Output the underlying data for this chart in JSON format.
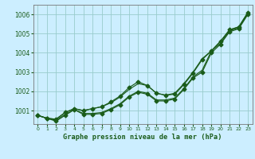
{
  "title": "Graphe pression niveau de la mer (hPa)",
  "background_color": "#cceeff",
  "grid_color": "#99cccc",
  "line_color": "#1a5c1a",
  "x_ticks": [
    0,
    1,
    2,
    3,
    4,
    5,
    6,
    7,
    8,
    9,
    10,
    11,
    12,
    13,
    14,
    15,
    16,
    17,
    18,
    19,
    20,
    21,
    22,
    23
  ],
  "ylim": [
    1000.3,
    1006.5
  ],
  "yticks": [
    1001,
    1002,
    1003,
    1004,
    1005,
    1006
  ],
  "s1": [
    1000.75,
    1000.6,
    1000.45,
    1000.75,
    1001.05,
    1000.8,
    1000.8,
    1000.85,
    1001.05,
    1001.3,
    1001.7,
    1001.95,
    1001.85,
    1001.5,
    1001.5,
    1001.6,
    1002.1,
    1002.7,
    1003.0,
    1004.0,
    1004.45,
    1005.1,
    1005.25,
    1006.0
  ],
  "s2": [
    1000.75,
    1000.6,
    1000.5,
    1000.8,
    1001.05,
    1000.85,
    1000.85,
    1000.9,
    1001.1,
    1001.35,
    1001.75,
    1002.0,
    1001.9,
    1001.55,
    1001.55,
    1001.65,
    1002.15,
    1002.75,
    1003.1,
    1004.1,
    1004.5,
    1005.15,
    1005.3,
    1006.05
  ],
  "s3": [
    1000.75,
    1000.6,
    1000.55,
    1000.9,
    1001.1,
    1001.0,
    1001.1,
    1001.2,
    1001.4,
    1001.7,
    1002.1,
    1002.4,
    1002.3,
    1001.9,
    1001.8,
    1001.9,
    1002.4,
    1003.0,
    1003.7,
    1004.1,
    1004.6,
    1005.2,
    1005.35,
    1006.1
  ],
  "s4": [
    1000.75,
    1000.6,
    1000.55,
    1000.9,
    1001.1,
    1001.0,
    1001.1,
    1001.2,
    1001.45,
    1001.75,
    1002.2,
    1002.5,
    1002.3,
    1001.9,
    1001.8,
    1001.85,
    1002.35,
    1002.95,
    1003.65,
    1004.1,
    1004.6,
    1005.2,
    1005.35,
    1006.1
  ]
}
